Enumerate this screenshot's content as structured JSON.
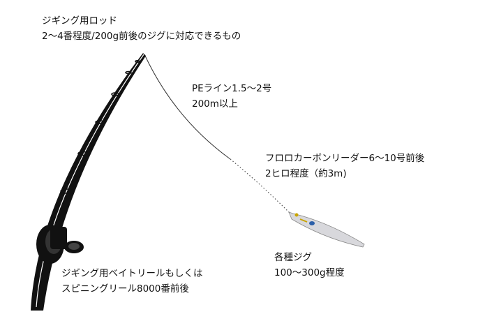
{
  "labels": [
    {
      "id": "rod",
      "lines": [
        "ジギング用ロッド",
        "2～4番程度/200g前後のジグに対応できるもの"
      ]
    },
    {
      "id": "pe-line",
      "lines": [
        "PEライン1.5～2号",
        "200m以上"
      ]
    },
    {
      "id": "leader",
      "lines": [
        "フロロカーボンリーダー6～10号前後",
        "2ヒロ程度（約3m)"
      ]
    },
    {
      "id": "jig",
      "lines": [
        "各種ジグ",
        "100～300g程度"
      ]
    },
    {
      "id": "reel",
      "lines": [
        "ジギング用ベイトリールもしくは",
        "スピニングリール8000番前後"
      ]
    }
  ]
}
